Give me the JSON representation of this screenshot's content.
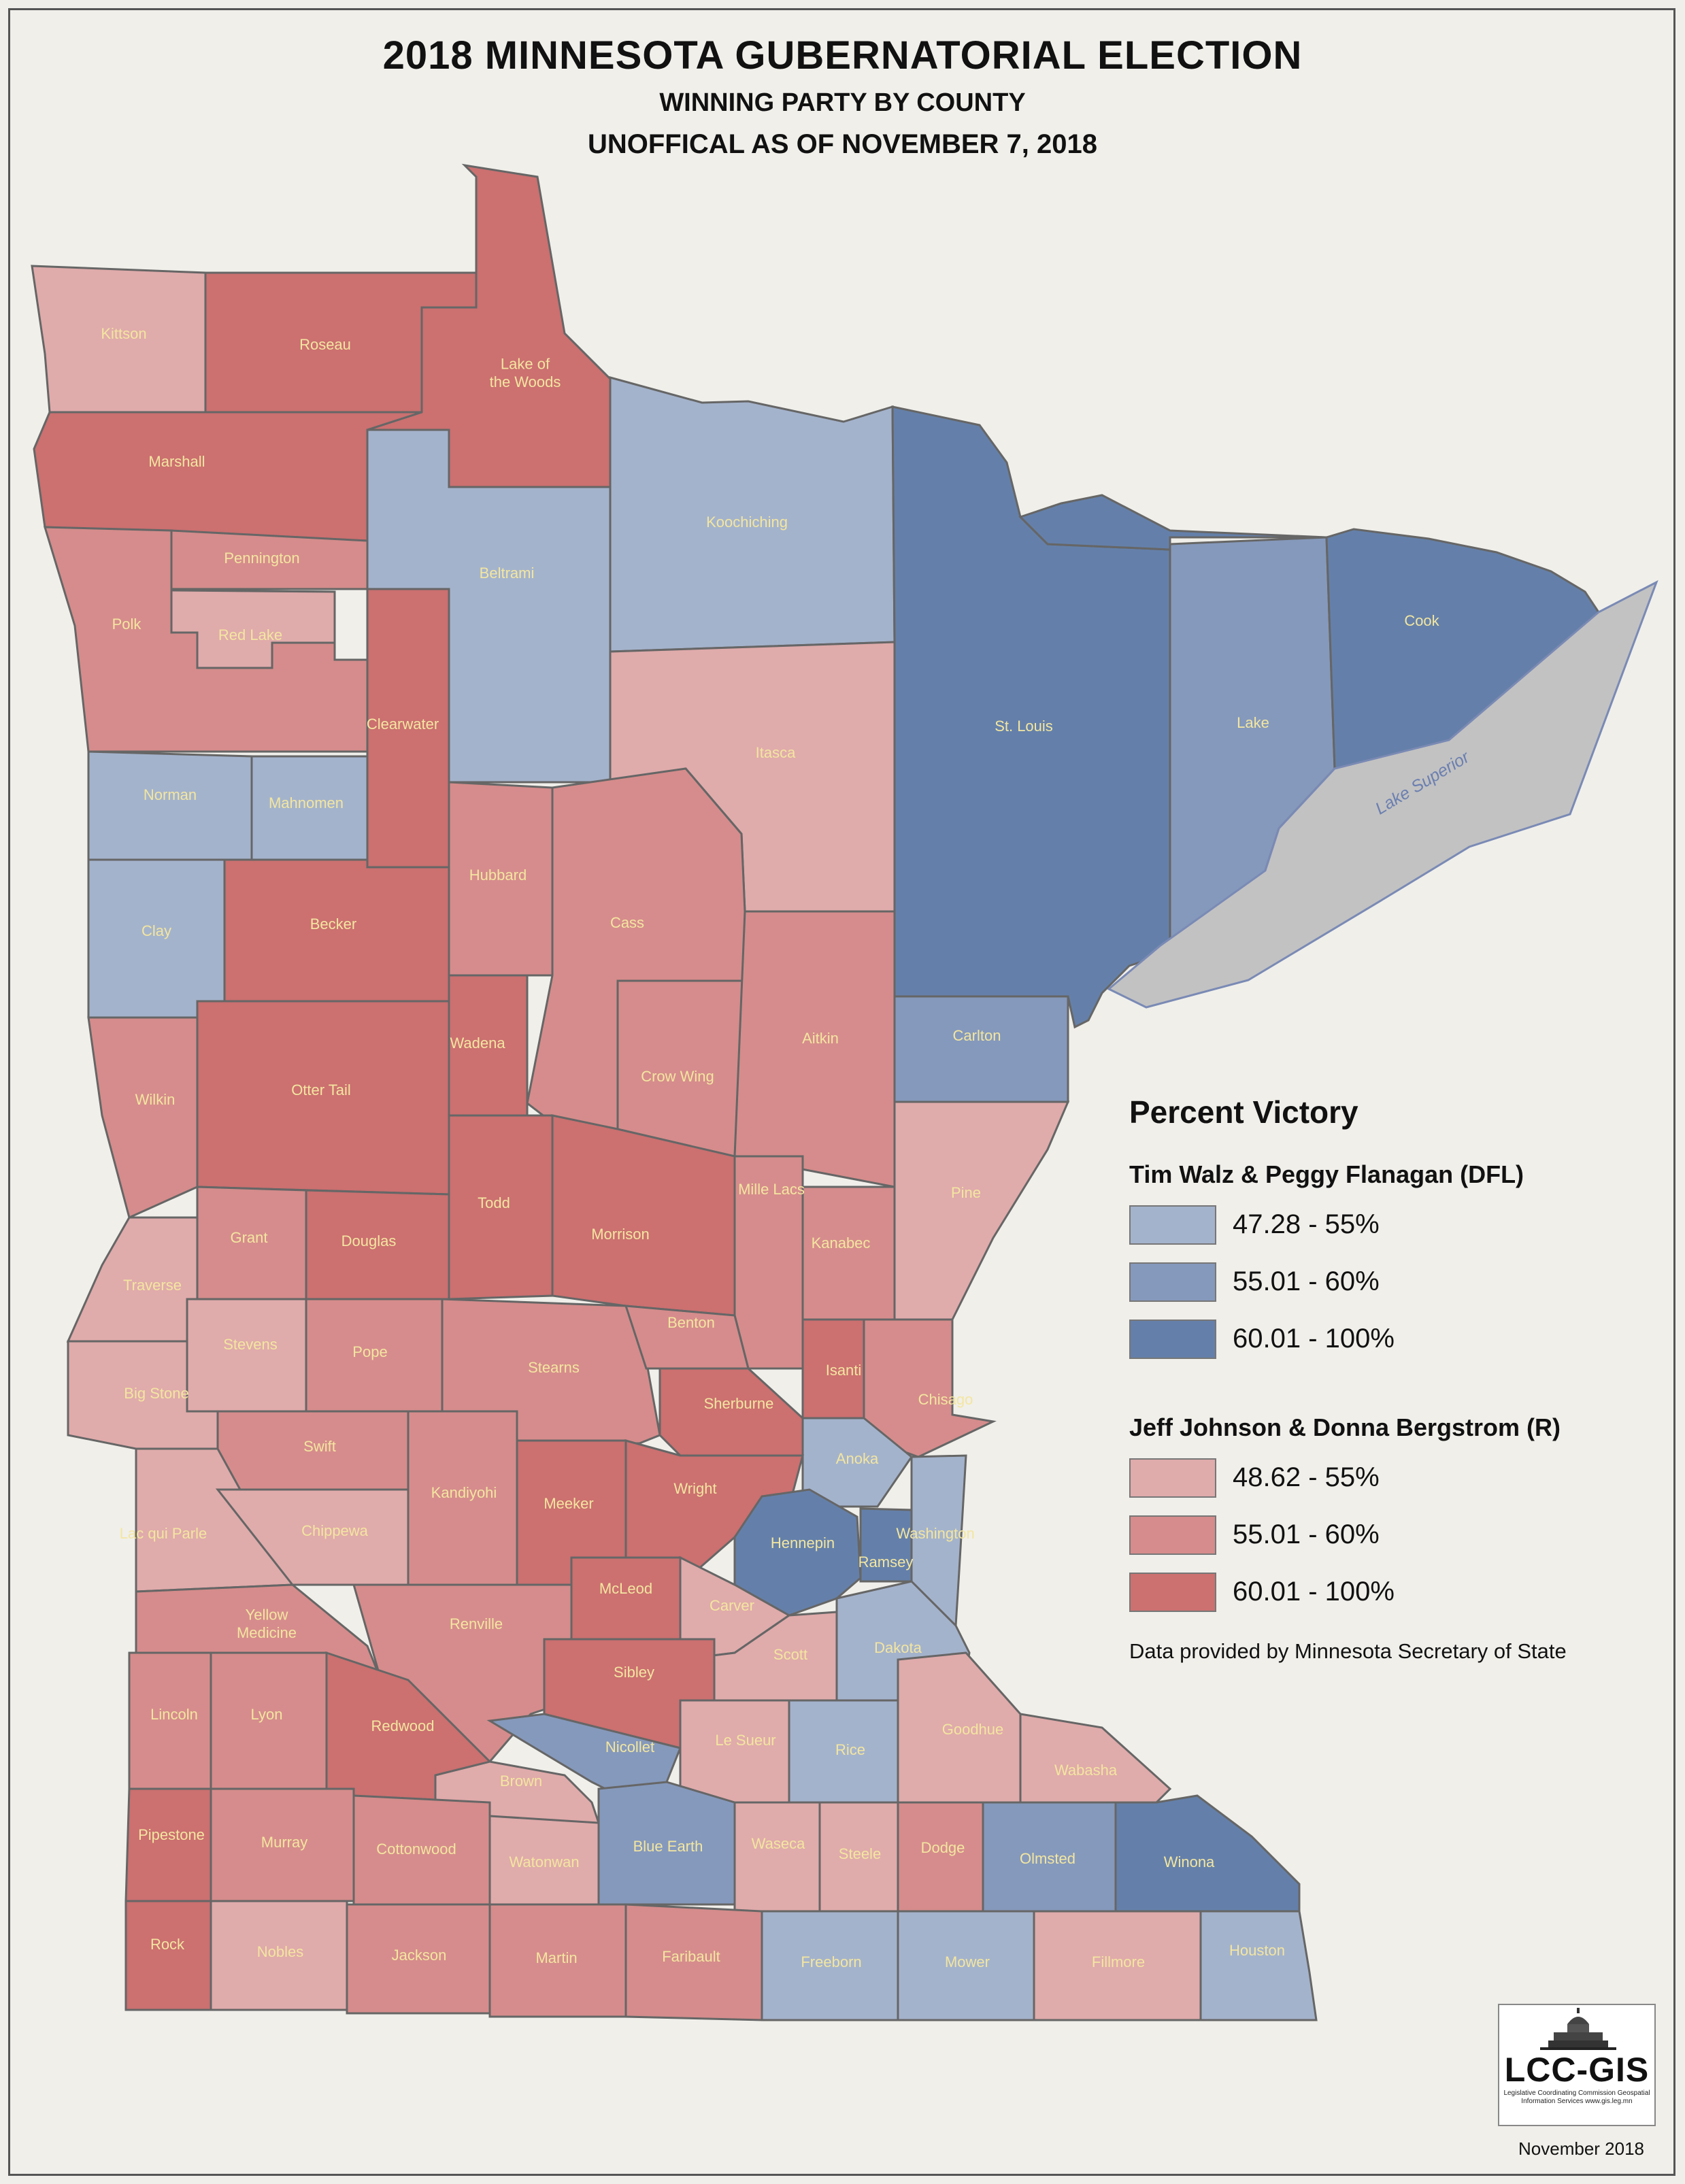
{
  "titles": {
    "main": "2018 MINNESOTA GUBERNATORIAL ELECTION",
    "sub1": "WINNING PARTY BY COUNTY",
    "sub2": "UNOFFICAL AS OF NOVEMBER 7, 2018"
  },
  "colors": {
    "dfl_low": "#a4b3cc",
    "dfl_mid": "#8599bc",
    "dfl_high": "#6480aa",
    "rep_low": "#e0abab",
    "rep_mid": "#d68c8c",
    "rep_high": "#cc7070",
    "water": "#c2c2c2",
    "label_text": "#f3e6a0",
    "background": "#f0efea"
  },
  "legend": {
    "title": "Percent Victory",
    "groups": [
      {
        "title": "Tim Walz & Peggy Flanagan (DFL)",
        "items": [
          {
            "range": "47.28 - 55%",
            "color": "#a4b3cc"
          },
          {
            "range": "55.01 - 60%",
            "color": "#8599bc"
          },
          {
            "range": "60.01 - 100%",
            "color": "#6480aa"
          }
        ]
      },
      {
        "title": "Jeff Johnson & Donna Bergstrom (R)",
        "items": [
          {
            "range": "48.62 - 55%",
            "color": "#e0abab"
          },
          {
            "range": "55.01 - 60%",
            "color": "#d68c8c"
          },
          {
            "range": "60.01 - 100%",
            "color": "#cc7070"
          }
        ]
      }
    ]
  },
  "water_label": "Lake Superior",
  "counties": [
    {
      "name": "Kittson",
      "party": "R",
      "level": "low"
    },
    {
      "name": "Roseau",
      "party": "R",
      "level": "high"
    },
    {
      "name": "Lake of the Woods",
      "party": "R",
      "level": "high"
    },
    {
      "name": "Marshall",
      "party": "R",
      "level": "high"
    },
    {
      "name": "Koochiching",
      "party": "DFL",
      "level": "low"
    },
    {
      "name": "Beltrami",
      "party": "DFL",
      "level": "low"
    },
    {
      "name": "Pennington",
      "party": "R",
      "level": "mid"
    },
    {
      "name": "Polk",
      "party": "R",
      "level": "mid"
    },
    {
      "name": "Red Lake",
      "party": "R",
      "level": "low"
    },
    {
      "name": "Clearwater",
      "party": "R",
      "level": "high"
    },
    {
      "name": "St. Louis",
      "party": "DFL",
      "level": "high"
    },
    {
      "name": "Lake",
      "party": "DFL",
      "level": "mid"
    },
    {
      "name": "Cook",
      "party": "DFL",
      "level": "high"
    },
    {
      "name": "Itasca",
      "party": "R",
      "level": "low"
    },
    {
      "name": "Norman",
      "party": "DFL",
      "level": "low"
    },
    {
      "name": "Mahnomen",
      "party": "DFL",
      "level": "low"
    },
    {
      "name": "Hubbard",
      "party": "R",
      "level": "mid"
    },
    {
      "name": "Cass",
      "party": "R",
      "level": "mid"
    },
    {
      "name": "Clay",
      "party": "DFL",
      "level": "low"
    },
    {
      "name": "Becker",
      "party": "R",
      "level": "high"
    },
    {
      "name": "Wadena",
      "party": "R",
      "level": "high"
    },
    {
      "name": "Crow Wing",
      "party": "R",
      "level": "mid"
    },
    {
      "name": "Aitkin",
      "party": "R",
      "level": "mid"
    },
    {
      "name": "Carlton",
      "party": "DFL",
      "level": "mid"
    },
    {
      "name": "Wilkin",
      "party": "R",
      "level": "mid"
    },
    {
      "name": "Otter Tail",
      "party": "R",
      "level": "high"
    },
    {
      "name": "Todd",
      "party": "R",
      "level": "high"
    },
    {
      "name": "Morrison",
      "party": "R",
      "level": "high"
    },
    {
      "name": "Mille Lacs",
      "party": "R",
      "level": "mid"
    },
    {
      "name": "Kanabec",
      "party": "R",
      "level": "mid"
    },
    {
      "name": "Pine",
      "party": "R",
      "level": "low"
    },
    {
      "name": "Grant",
      "party": "R",
      "level": "mid"
    },
    {
      "name": "Douglas",
      "party": "R",
      "level": "high"
    },
    {
      "name": "Traverse",
      "party": "R",
      "level": "low"
    },
    {
      "name": "Stevens",
      "party": "R",
      "level": "low"
    },
    {
      "name": "Pope",
      "party": "R",
      "level": "mid"
    },
    {
      "name": "Stearns",
      "party": "R",
      "level": "mid"
    },
    {
      "name": "Benton",
      "party": "R",
      "level": "mid"
    },
    {
      "name": "Isanti",
      "party": "R",
      "level": "high"
    },
    {
      "name": "Chisago",
      "party": "R",
      "level": "mid"
    },
    {
      "name": "Big Stone",
      "party": "R",
      "level": "low"
    },
    {
      "name": "Swift",
      "party": "R",
      "level": "mid"
    },
    {
      "name": "Sherburne",
      "party": "R",
      "level": "high"
    },
    {
      "name": "Anoka",
      "party": "DFL",
      "level": "low"
    },
    {
      "name": "Kandiyohi",
      "party": "R",
      "level": "mid"
    },
    {
      "name": "Meeker",
      "party": "R",
      "level": "high"
    },
    {
      "name": "Wright",
      "party": "R",
      "level": "high"
    },
    {
      "name": "Lac qui Parle",
      "party": "R",
      "level": "low"
    },
    {
      "name": "Chippewa",
      "party": "R",
      "level": "low"
    },
    {
      "name": "Hennepin",
      "party": "DFL",
      "level": "high"
    },
    {
      "name": "Ramsey",
      "party": "DFL",
      "level": "high"
    },
    {
      "name": "Washington",
      "party": "DFL",
      "level": "low"
    },
    {
      "name": "Yellow Medicine",
      "party": "R",
      "level": "mid"
    },
    {
      "name": "Renville",
      "party": "R",
      "level": "mid"
    },
    {
      "name": "McLeod",
      "party": "R",
      "level": "high"
    },
    {
      "name": "Carver",
      "party": "R",
      "level": "low"
    },
    {
      "name": "Scott",
      "party": "R",
      "level": "low"
    },
    {
      "name": "Dakota",
      "party": "DFL",
      "level": "low"
    },
    {
      "name": "Sibley",
      "party": "R",
      "level": "high"
    },
    {
      "name": "Lincoln",
      "party": "R",
      "level": "mid"
    },
    {
      "name": "Lyon",
      "party": "R",
      "level": "mid"
    },
    {
      "name": "Redwood",
      "party": "R",
      "level": "high"
    },
    {
      "name": "Nicollet",
      "party": "DFL",
      "level": "mid"
    },
    {
      "name": "Le Sueur",
      "party": "R",
      "level": "low"
    },
    {
      "name": "Rice",
      "party": "DFL",
      "level": "low"
    },
    {
      "name": "Goodhue",
      "party": "R",
      "level": "low"
    },
    {
      "name": "Wabasha",
      "party": "R",
      "level": "low"
    },
    {
      "name": "Brown",
      "party": "R",
      "level": "low"
    },
    {
      "name": "Pipestone",
      "party": "R",
      "level": "high"
    },
    {
      "name": "Murray",
      "party": "R",
      "level": "mid"
    },
    {
      "name": "Cottonwood",
      "party": "R",
      "level": "mid"
    },
    {
      "name": "Watonwan",
      "party": "R",
      "level": "low"
    },
    {
      "name": "Blue Earth",
      "party": "DFL",
      "level": "mid"
    },
    {
      "name": "Waseca",
      "party": "R",
      "level": "low"
    },
    {
      "name": "Steele",
      "party": "R",
      "level": "low"
    },
    {
      "name": "Dodge",
      "party": "R",
      "level": "mid"
    },
    {
      "name": "Olmsted",
      "party": "DFL",
      "level": "mid"
    },
    {
      "name": "Winona",
      "party": "DFL",
      "level": "high"
    },
    {
      "name": "Rock",
      "party": "R",
      "level": "high"
    },
    {
      "name": "Nobles",
      "party": "R",
      "level": "low"
    },
    {
      "name": "Jackson",
      "party": "R",
      "level": "mid"
    },
    {
      "name": "Martin",
      "party": "R",
      "level": "mid"
    },
    {
      "name": "Faribault",
      "party": "R",
      "level": "mid"
    },
    {
      "name": "Freeborn",
      "party": "DFL",
      "level": "low"
    },
    {
      "name": "Mower",
      "party": "DFL",
      "level": "low"
    },
    {
      "name": "Fillmore",
      "party": "R",
      "level": "low"
    },
    {
      "name": "Houston",
      "party": "DFL",
      "level": "low"
    }
  ],
  "credit": "Data provided by Minnesota Secretary of State",
  "logo": {
    "text": "LCC-GIS",
    "subtitle": "Legislative Coordinating Commission Geospatial Information Services www.gis.leg.mn"
  },
  "date_note": "November 2018"
}
